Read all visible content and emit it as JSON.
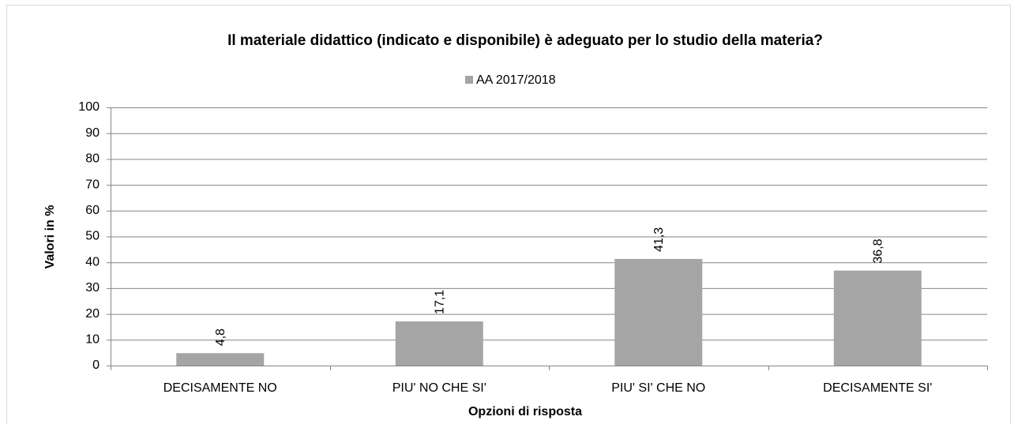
{
  "chart_data": {
    "type": "bar",
    "title": "Il materiale didattico (indicato e disponibile) è adeguato per lo studio della materia?",
    "x_label": "Opzioni di risposta",
    "y_label": "Valori in %",
    "categories": [
      "DECISAMENTE NO",
      "PIU' NO CHE SI'",
      "PIU' SI' CHE NO",
      "DECISAMENTE SI'"
    ],
    "series": [
      {
        "name": "AA 2017/2018",
        "color": "#a5a5a5",
        "values": [
          4.8,
          17.1,
          41.3,
          36.8
        ],
        "value_labels": [
          "4,8",
          "17,1",
          "41,3",
          "36,8"
        ]
      }
    ],
    "ylim": [
      0,
      100
    ],
    "yticks": [
      0,
      10,
      20,
      30,
      40,
      50,
      60,
      70,
      80,
      90,
      100
    ],
    "grid": true,
    "legend": "top"
  }
}
